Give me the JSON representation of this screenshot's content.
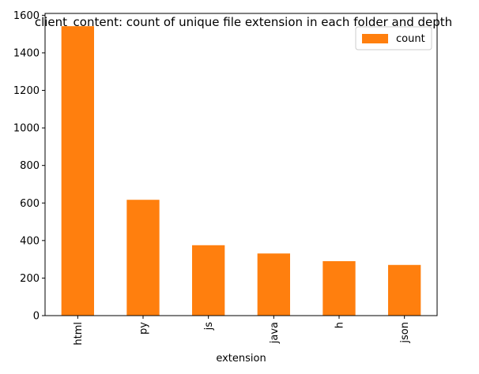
{
  "chart_data": {
    "type": "bar",
    "title": "client_content: count of unique file extension in each folder and depth",
    "xlabel": "extension",
    "ylabel": "",
    "categories": [
      "html",
      "py",
      "js",
      "java",
      "h",
      "json"
    ],
    "series": [
      {
        "name": "count",
        "values": [
          1542,
          617,
          375,
          331,
          290,
          270
        ],
        "color": "#ff7f0e"
      }
    ],
    "ylim": [
      0,
      1610
    ],
    "yticks": [
      0,
      200,
      400,
      600,
      800,
      1000,
      1200,
      1400,
      1600
    ],
    "grid": false,
    "legend_position": "top-right",
    "tick_label_rotation": "vertical"
  }
}
